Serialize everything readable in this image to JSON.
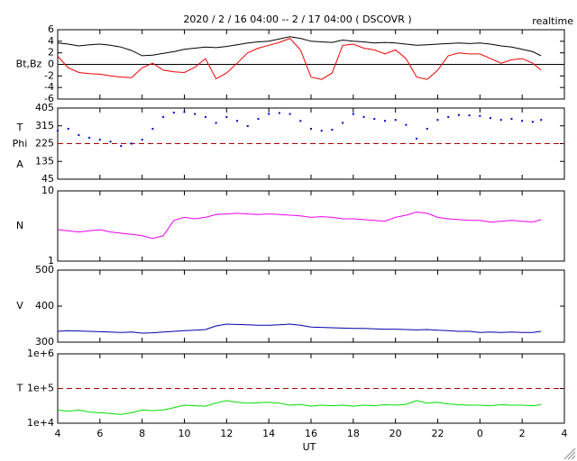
{
  "chart_data": [
    {
      "type": "line",
      "title": "2020 / 2 / 16  04:00 -- 2 / 17  04:00 ( DSCOVR )",
      "subtitle": "realtime",
      "ylabel": [
        "Bt,Bz"
      ],
      "ylim": [
        -6,
        6
      ],
      "yticks": [
        6,
        4,
        2,
        0,
        -2,
        -4,
        -6
      ],
      "hline": 0,
      "hline_color": "#000000",
      "hline_dash": false,
      "series": [
        {
          "name": "Bt",
          "color": "#000000",
          "values": [
            3.7,
            3.5,
            3.2,
            3.4,
            3.5,
            3.3,
            3.0,
            2.4,
            1.5,
            1.6,
            1.9,
            2.2,
            2.6,
            2.8,
            3.0,
            2.9,
            3.1,
            3.4,
            3.7,
            3.9,
            4.0,
            4.4,
            4.8,
            4.5,
            4.0,
            3.9,
            3.8,
            4.2,
            4.0,
            3.9,
            3.7,
            3.8,
            3.7,
            3.5,
            3.3,
            3.4,
            3.5,
            3.6,
            3.7,
            3.6,
            3.7,
            3.5,
            3.2,
            3.0,
            2.6,
            2.2,
            1.5
          ]
        },
        {
          "name": "Bz",
          "color": "#ee0000",
          "values": [
            1.4,
            -0.6,
            -1.4,
            -1.6,
            -1.7,
            -2.0,
            -2.2,
            -2.3,
            -0.6,
            0.2,
            -1.0,
            -1.3,
            -1.4,
            -0.5,
            1.0,
            -2.5,
            -1.5,
            0.2,
            2.0,
            2.8,
            3.3,
            3.8,
            4.5,
            2.5,
            -2.2,
            -2.6,
            -1.5,
            3.3,
            3.5,
            2.8,
            2.5,
            1.8,
            2.5,
            1.0,
            -2.2,
            -2.6,
            -1.0,
            1.5,
            2.0,
            1.8,
            1.8,
            1.0,
            0.2,
            0.8,
            1.0,
            0.2,
            -1.0
          ]
        }
      ]
    },
    {
      "type": "scatter",
      "ylabel": [
        "T",
        "Phi",
        "A"
      ],
      "ylim": [
        45,
        405
      ],
      "yticks": [
        405,
        315,
        225,
        135,
        45
      ],
      "hline": 225,
      "hline_color": "#aa0000",
      "hline_dash": true,
      "series": [
        {
          "name": "Phi",
          "color": "#0000cc",
          "values": [
            291,
            300,
            268,
            255,
            245,
            235,
            213,
            225,
            245,
            300,
            360,
            382,
            385,
            375,
            360,
            330,
            360,
            340,
            314,
            350,
            375,
            380,
            375,
            340,
            300,
            290,
            295,
            330,
            375,
            360,
            350,
            340,
            345,
            320,
            250,
            300,
            345,
            360,
            370,
            368,
            365,
            355,
            345,
            350,
            340,
            335,
            345
          ]
        }
      ]
    },
    {
      "type": "line",
      "log": true,
      "ylabel": [
        "N"
      ],
      "ylim": [
        1,
        10
      ],
      "yticks": [
        10,
        1
      ],
      "series": [
        {
          "name": "N",
          "color": "#ee00ee",
          "values": [
            2.8,
            2.7,
            2.6,
            2.7,
            2.8,
            2.6,
            2.5,
            2.4,
            2.3,
            2.1,
            2.3,
            3.8,
            4.2,
            4.0,
            4.2,
            4.6,
            4.7,
            4.8,
            4.7,
            4.6,
            4.7,
            4.6,
            4.5,
            4.4,
            4.2,
            4.3,
            4.2,
            4.0,
            4.0,
            3.9,
            3.8,
            3.7,
            4.2,
            4.5,
            5.0,
            4.8,
            4.2,
            4.0,
            3.9,
            3.8,
            3.8,
            3.6,
            3.7,
            3.8,
            3.7,
            3.6,
            3.9
          ]
        }
      ]
    },
    {
      "type": "line",
      "ylabel": [
        "V"
      ],
      "ylim": [
        300,
        500
      ],
      "yticks": [
        500,
        400,
        300
      ],
      "series": [
        {
          "name": "V",
          "color": "#0000aa",
          "values": [
            330,
            332,
            331,
            330,
            329,
            328,
            327,
            328,
            325,
            326,
            328,
            330,
            332,
            333,
            335,
            345,
            350,
            349,
            348,
            347,
            347,
            348,
            350,
            347,
            342,
            341,
            340,
            339,
            338,
            338,
            337,
            336,
            336,
            335,
            334,
            335,
            333,
            332,
            330,
            330,
            327,
            328,
            327,
            328,
            327,
            327,
            330
          ]
        }
      ]
    },
    {
      "type": "line",
      "log": true,
      "ylabel": [
        "T"
      ],
      "xlabel": "UT",
      "ylim": [
        10000,
        1000000
      ],
      "yticks": [
        {
          "value": 1000000,
          "label": "1e+6"
        },
        {
          "value": 100000,
          "label": "1e+5"
        },
        {
          "value": 10000,
          "label": "1e+4"
        }
      ],
      "hline": 100000,
      "hline_color": "#aa0000",
      "hline_dash": true,
      "xlim": [
        4,
        28
      ],
      "xticks": [
        4,
        6,
        8,
        10,
        12,
        14,
        16,
        18,
        20,
        22,
        {
          "value": 24,
          "label": "0"
        },
        {
          "value": 26,
          "label": "2"
        },
        {
          "value": 28,
          "label": "4"
        }
      ],
      "x": [
        4,
        4.5,
        5,
        5.5,
        6,
        6.5,
        7,
        7.5,
        8,
        8.5,
        9,
        9.5,
        10,
        10.5,
        11,
        11.5,
        12,
        12.5,
        13,
        13.5,
        14,
        14.5,
        15,
        15.5,
        16,
        16.5,
        17,
        17.5,
        18,
        18.5,
        19,
        19.5,
        20,
        20.5,
        21,
        21.5,
        22,
        22.5,
        23,
        23.5,
        24,
        24.5,
        25,
        25.5,
        26,
        26.5,
        26.9
      ],
      "series": [
        {
          "name": "T",
          "color": "#00dd00",
          "values": [
            24000,
            22000,
            24000,
            21000,
            20000,
            19000,
            18000,
            20000,
            24000,
            23000,
            24000,
            28000,
            33000,
            32000,
            31000,
            38000,
            45000,
            40000,
            38000,
            39000,
            40000,
            38000,
            33000,
            35000,
            31000,
            33000,
            32000,
            33000,
            31000,
            33000,
            32000,
            34000,
            33000,
            35000,
            45000,
            38000,
            40000,
            36000,
            34000,
            33000,
            33000,
            32000,
            34000,
            33000,
            33000,
            32000,
            34000
          ]
        }
      ]
    }
  ]
}
